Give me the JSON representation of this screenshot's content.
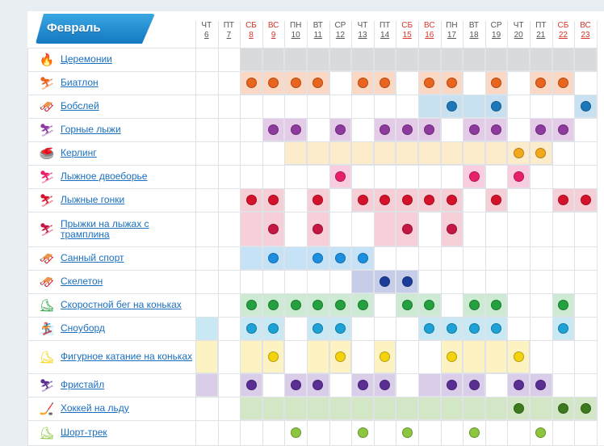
{
  "month_label": "Февраль",
  "days": [
    {
      "dow": "ЧТ",
      "day": "6",
      "weekend": false
    },
    {
      "dow": "ПТ",
      "day": "7",
      "weekend": false
    },
    {
      "dow": "СБ",
      "day": "8",
      "weekend": true
    },
    {
      "dow": "ВС",
      "day": "9",
      "weekend": true
    },
    {
      "dow": "ПН",
      "day": "10",
      "weekend": false
    },
    {
      "dow": "ВТ",
      "day": "11",
      "weekend": false
    },
    {
      "dow": "СР",
      "day": "12",
      "weekend": false
    },
    {
      "dow": "ЧТ",
      "day": "13",
      "weekend": false
    },
    {
      "dow": "ПТ",
      "day": "14",
      "weekend": false
    },
    {
      "dow": "СБ",
      "day": "15",
      "weekend": true
    },
    {
      "dow": "ВС",
      "day": "16",
      "weekend": true
    },
    {
      "dow": "ПН",
      "day": "17",
      "weekend": false
    },
    {
      "dow": "ВТ",
      "day": "18",
      "weekend": false
    },
    {
      "dow": "СР",
      "day": "19",
      "weekend": false
    },
    {
      "dow": "ЧТ",
      "day": "20",
      "weekend": false
    },
    {
      "dow": "ПТ",
      "day": "21",
      "weekend": false
    },
    {
      "dow": "СБ",
      "day": "22",
      "weekend": true
    },
    {
      "dow": "ВС",
      "day": "23",
      "weekend": true
    }
  ],
  "sports": [
    {
      "name": "Церемонии",
      "icon": "torch-icon",
      "glyph": "🔥",
      "color": "#2f6db3",
      "bg": "#d8dadc",
      "bg_days": [
        2,
        3,
        4,
        5,
        6,
        7,
        8,
        9,
        10,
        11,
        12,
        13,
        14,
        15,
        16,
        17
      ],
      "dots": []
    },
    {
      "name": "Биатлон",
      "icon": "biathlon-icon",
      "glyph": "⛷",
      "color": "#e8641f",
      "bg": "#fbd8c4",
      "bg_days": [
        2,
        3,
        4,
        5,
        7,
        8,
        10,
        11,
        13,
        15,
        16
      ],
      "dots": [
        2,
        3,
        4,
        5,
        7,
        8,
        10,
        11,
        13,
        15,
        16
      ]
    },
    {
      "name": "Бобслей",
      "icon": "bobsleigh-icon",
      "glyph": "🛷",
      "color": "#1c78b8",
      "bg": "#c8e1f1",
      "bg_days": [
        10,
        11,
        12,
        13,
        17
      ],
      "dots": [
        11,
        13,
        17
      ]
    },
    {
      "name": "Горные лыжи",
      "icon": "alpine-skiing-icon",
      "glyph": "⛷",
      "color": "#8e3a9e",
      "bg": "#e4cbe8",
      "bg_days": [
        3,
        4,
        6,
        8,
        9,
        10,
        12,
        13,
        15,
        16
      ],
      "dots": [
        3,
        4,
        6,
        8,
        9,
        10,
        12,
        13,
        15,
        16
      ]
    },
    {
      "name": "Керлинг",
      "icon": "curling-icon",
      "glyph": "🥌",
      "color": "#f2a81c",
      "bg": "#fdeccb",
      "bg_days": [
        4,
        5,
        6,
        7,
        8,
        9,
        10,
        11,
        12,
        13,
        14,
        15
      ],
      "dots": [
        14,
        15
      ]
    },
    {
      "name": "Лыжное двоеборье",
      "icon": "nordic-combined-icon",
      "glyph": "⛷",
      "color": "#e8206a",
      "bg": "#f9cde0",
      "bg_days": [
        6,
        12,
        14
      ],
      "dots": [
        6,
        12,
        14
      ]
    },
    {
      "name": "Лыжные гонки",
      "icon": "cross-country-icon",
      "glyph": "⛷",
      "color": "#d5122b",
      "bg": "#f6cfd6",
      "bg_days": [
        2,
        3,
        5,
        7,
        8,
        9,
        10,
        11,
        13,
        16,
        17
      ],
      "dots": [
        2,
        3,
        5,
        7,
        8,
        9,
        10,
        11,
        13,
        16,
        17
      ]
    },
    {
      "name": "Прыжки на лыжах с трамплина",
      "icon": "ski-jumping-icon",
      "glyph": "⛷",
      "color": "#c41743",
      "bg": "#f6cfd9",
      "bg_days": [
        2,
        3,
        5,
        8,
        9,
        11
      ],
      "dots": [
        3,
        5,
        9,
        11
      ]
    },
    {
      "name": "Санный спорт",
      "icon": "luge-icon",
      "glyph": "🛷",
      "color": "#1c8fe0",
      "bg": "#c6e2f6",
      "bg_days": [
        2,
        3,
        4,
        5,
        6,
        7
      ],
      "dots": [
        3,
        5,
        6,
        7
      ]
    },
    {
      "name": "Скелетон",
      "icon": "skeleton-icon",
      "glyph": "🛷",
      "color": "#1b3c98",
      "bg": "#c5cde8",
      "bg_days": [
        7,
        8,
        9
      ],
      "dots": [
        8,
        9
      ]
    },
    {
      "name": "Скоростной бег на коньках",
      "icon": "speed-skating-icon",
      "glyph": "⛸",
      "color": "#24a03f",
      "bg": "#cdebd3",
      "bg_days": [
        2,
        3,
        4,
        5,
        6,
        7,
        9,
        10,
        12,
        13,
        16
      ],
      "dots": [
        2,
        3,
        4,
        5,
        6,
        7,
        9,
        10,
        12,
        13,
        16
      ]
    },
    {
      "name": "Сноуборд",
      "icon": "snowboard-icon",
      "glyph": "🏂",
      "color": "#1ca2d6",
      "bg": "#c8e8f4",
      "bg_days": [
        0,
        2,
        3,
        5,
        6,
        10,
        11,
        12,
        13,
        16
      ],
      "dots": [
        2,
        3,
        5,
        6,
        10,
        11,
        12,
        13,
        16
      ]
    },
    {
      "name": "Фигурное катание на коньках",
      "icon": "figure-skating-icon",
      "glyph": "⛸",
      "color": "#f5d20e",
      "bg": "#fdf3c2",
      "bg_days": [
        0,
        2,
        3,
        5,
        6,
        8,
        11,
        12,
        13,
        14
      ],
      "dots": [
        3,
        6,
        8,
        11,
        14
      ]
    },
    {
      "name": "Фристайл",
      "icon": "freestyle-icon",
      "glyph": "⛷",
      "color": "#5a2e93",
      "bg": "#d9cdea",
      "bg_days": [
        0,
        2,
        4,
        5,
        7,
        8,
        10,
        11,
        12,
        14,
        15
      ],
      "dots": [
        2,
        4,
        5,
        7,
        8,
        11,
        12,
        14,
        15
      ]
    },
    {
      "name": "Хоккей на льду",
      "icon": "ice-hockey-icon",
      "glyph": "🏒",
      "color": "#3d7a1e",
      "bg": "#d3e6c6",
      "bg_days": [
        2,
        3,
        4,
        5,
        6,
        7,
        8,
        9,
        10,
        11,
        12,
        13,
        14,
        15,
        16,
        17
      ],
      "dots": [
        14,
        16,
        17
      ]
    },
    {
      "name": "Шорт-трек",
      "icon": "short-track-icon",
      "glyph": "⛸",
      "color": "#8cc63f",
      "bg": "#e2f0cc",
      "bg_days": [],
      "dots": [
        4,
        7,
        9,
        12,
        15
      ]
    }
  ]
}
